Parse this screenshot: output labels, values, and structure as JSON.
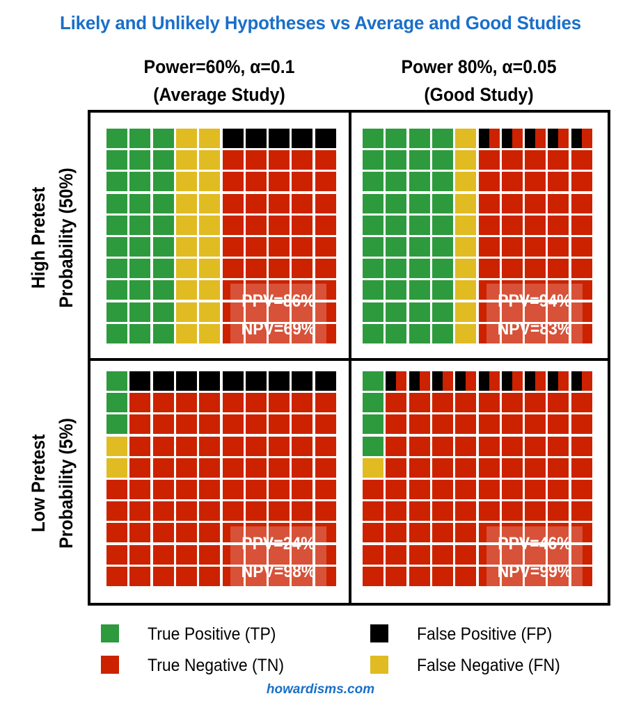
{
  "chart_data": {
    "type": "waffle",
    "title": "Likely and Unlikely Hypotheses vs Average and Good Studies",
    "columns": [
      {
        "line1": "Power=60%, α=0.1",
        "line2": "(Average Study)"
      },
      {
        "line1": "Power 80%, α=0.05",
        "line2": "(Good Study)"
      }
    ],
    "rows": [
      {
        "line1": "High Pretest",
        "line2": "Probability (50%)"
      },
      {
        "line1": "Low Pretest",
        "line2": "Probability (5%)"
      }
    ],
    "panels": [
      {
        "row": 0,
        "col": 0,
        "TP": 30,
        "FN": 20,
        "FP": 5,
        "TN": 45,
        "ppv_label": "PPV=86%",
        "npv_label": "NPV=69%"
      },
      {
        "row": 0,
        "col": 1,
        "TP": 40,
        "FN": 10,
        "FP": 2.5,
        "TN": 47.5,
        "ppv_label": "PPV=94%",
        "npv_label": "NPV=83%"
      },
      {
        "row": 1,
        "col": 0,
        "TP": 3,
        "FN": 2,
        "FP": 9.5,
        "TN": 85.5,
        "ppv_label": "PPV=24%",
        "npv_label": "NPV=98%"
      },
      {
        "row": 1,
        "col": 1,
        "TP": 4,
        "FN": 1,
        "FP": 4.75,
        "TN": 90.25,
        "ppv_label": "PPV=46%",
        "npv_label": "NPV=99%"
      }
    ],
    "grid": {
      "cols": 10,
      "rows": 10
    },
    "order": "column-major, top-to-bottom: TP, FN, then FP at the top of each remaining column with TN below",
    "legend": [
      {
        "key": "TP",
        "label": "True Positive (TP)",
        "color": "#2e9a3e"
      },
      {
        "key": "TN",
        "label": "True Negative (TN)",
        "color": "#cc2200"
      },
      {
        "key": "FP",
        "label": "False Positive (FP)",
        "color": "#000000"
      },
      {
        "key": "FN",
        "label": "False Negative (FN)",
        "color": "#e0bb22"
      }
    ]
  },
  "footer": "howardisms.com"
}
